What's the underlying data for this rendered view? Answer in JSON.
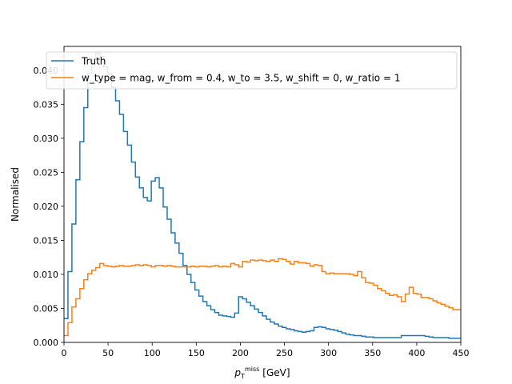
{
  "chart_data": {
    "type": "line",
    "drawstyle": "steps",
    "xlabel_main": "p",
    "xlabel_sub": "T",
    "xlabel_sup": "miss",
    "xlabel_unit": "[GeV]",
    "ylabel": "Normalised",
    "xlim": [
      0,
      450
    ],
    "ylim": [
      0,
      0.0435
    ],
    "xticks": [
      0,
      50,
      100,
      150,
      200,
      250,
      300,
      350,
      400,
      450
    ],
    "xtick_labels": [
      "0",
      "50",
      "100",
      "150",
      "200",
      "250",
      "300",
      "350",
      "400",
      "450"
    ],
    "yticks": [
      0.0,
      0.005,
      0.01,
      0.015,
      0.02,
      0.025,
      0.03,
      0.035,
      0.04
    ],
    "ytick_labels": [
      "0.000",
      "0.005",
      "0.010",
      "0.015",
      "0.020",
      "0.025",
      "0.030",
      "0.035",
      "0.040"
    ],
    "grid": false,
    "legend_position": "top-left",
    "bin_width": 4.5,
    "series": [
      {
        "name": "Truth",
        "color": "#1f77b4",
        "values": [
          0.0035,
          0.0104,
          0.0174,
          0.0239,
          0.0295,
          0.0345,
          0.0395,
          0.0415,
          0.0425,
          0.042,
          0.0405,
          0.0395,
          0.0375,
          0.0355,
          0.0335,
          0.031,
          0.029,
          0.0265,
          0.0243,
          0.0227,
          0.0213,
          0.0208,
          0.0237,
          0.0242,
          0.0227,
          0.0199,
          0.0181,
          0.0161,
          0.0146,
          0.0131,
          0.0113,
          0.01,
          0.0088,
          0.0077,
          0.0068,
          0.006,
          0.0054,
          0.0048,
          0.0044,
          0.004,
          0.0039,
          0.0038,
          0.0037,
          0.0043,
          0.0067,
          0.0064,
          0.0059,
          0.0054,
          0.0049,
          0.0044,
          0.0039,
          0.0034,
          0.003,
          0.0027,
          0.0024,
          0.0022,
          0.002,
          0.0019,
          0.0017,
          0.0016,
          0.0015,
          0.0016,
          0.0017,
          0.0022,
          0.0023,
          0.0022,
          0.002,
          0.0019,
          0.0018,
          0.0016,
          0.0014,
          0.0012,
          0.0011,
          0.001,
          0.001,
          0.0009,
          0.0008,
          0.0008,
          0.0007,
          0.0007,
          0.0007,
          0.0007,
          0.0007,
          0.0007,
          0.0007,
          0.001,
          0.001,
          0.001,
          0.001,
          0.001,
          0.001,
          0.0009,
          0.0008,
          0.0007,
          0.0007,
          0.0007,
          0.0007,
          0.0006,
          0.0006,
          0.0006
        ]
      },
      {
        "name": "w_type = mag, w_from = 0.4, w_to = 3.5, w_shift = 0, w_ratio = 1",
        "color": "#ff7f0e",
        "values": [
          0.001,
          0.0029,
          0.0052,
          0.0064,
          0.0079,
          0.0092,
          0.0101,
          0.0106,
          0.011,
          0.0116,
          0.0113,
          0.0112,
          0.0111,
          0.0112,
          0.0113,
          0.0112,
          0.0112,
          0.0113,
          0.0114,
          0.0113,
          0.0114,
          0.0113,
          0.0111,
          0.0113,
          0.0113,
          0.0112,
          0.0113,
          0.0112,
          0.0111,
          0.0111,
          0.0111,
          0.0111,
          0.0112,
          0.0111,
          0.0112,
          0.0112,
          0.0111,
          0.0112,
          0.0113,
          0.0111,
          0.0112,
          0.0111,
          0.0116,
          0.0114,
          0.0111,
          0.0119,
          0.0118,
          0.0121,
          0.012,
          0.0121,
          0.012,
          0.0119,
          0.0121,
          0.0119,
          0.0123,
          0.0122,
          0.0119,
          0.0115,
          0.0119,
          0.0117,
          0.0117,
          0.0116,
          0.0112,
          0.0114,
          0.0113,
          0.0104,
          0.0101,
          0.0102,
          0.0101,
          0.0101,
          0.0101,
          0.0101,
          0.01,
          0.0098,
          0.0104,
          0.0095,
          0.0088,
          0.0087,
          0.0084,
          0.0079,
          0.0076,
          0.0072,
          0.0069,
          0.007,
          0.0067,
          0.006,
          0.0071,
          0.0081,
          0.0072,
          0.0071,
          0.0066,
          0.0066,
          0.0064,
          0.0061,
          0.0058,
          0.0056,
          0.0053,
          0.0051,
          0.0048,
          0.0048
        ]
      }
    ]
  }
}
